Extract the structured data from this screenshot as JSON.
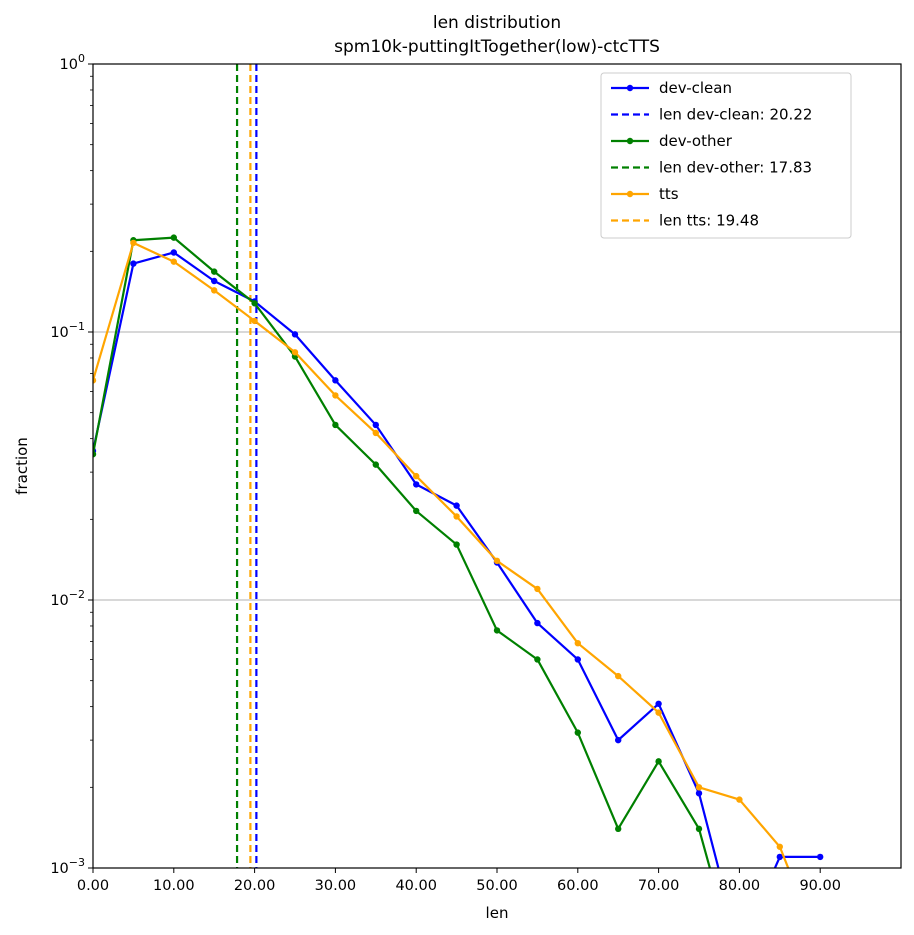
{
  "chart_data": {
    "type": "line",
    "title": "len distribution",
    "subtitle": "spm10k-puttingItTogether(low)-ctcTTS",
    "xlabel": "len",
    "ylabel": "fraction",
    "xlim": [
      0,
      100
    ],
    "ylim": [
      0.001,
      1
    ],
    "yscale": "log",
    "x_ticks": [
      "0.00",
      "10.00",
      "20.00",
      "30.00",
      "40.00",
      "50.00",
      "60.00",
      "70.00",
      "80.00",
      "90.00"
    ],
    "y_ticks": [
      {
        "base": "10",
        "exp": "0",
        "value": 1
      },
      {
        "base": "10",
        "exp": "−1",
        "value": 0.1
      },
      {
        "base": "10",
        "exp": "−2",
        "value": 0.01
      },
      {
        "base": "10",
        "exp": "−3",
        "value": 0.001
      }
    ],
    "grid": "horizontal",
    "legend_position": "top-right",
    "series": [
      {
        "name": "dev-clean",
        "color": "#0000ff",
        "x": [
          0,
          5,
          10,
          15,
          20,
          25,
          30,
          35,
          40,
          45,
          50,
          55,
          60,
          65,
          70,
          75,
          80,
          85,
          90
        ],
        "values": [
          0.036,
          0.18,
          0.198,
          0.155,
          0.13,
          0.098,
          0.066,
          0.045,
          0.027,
          0.0225,
          0.0138,
          0.0082,
          0.006,
          0.003,
          0.0041,
          0.0019,
          0.0005,
          0.0011,
          0.0011
        ]
      },
      {
        "name": "dev-other",
        "color": "#008000",
        "x": [
          0,
          5,
          10,
          15,
          20,
          25,
          30,
          35,
          40,
          45,
          50,
          55,
          60,
          65,
          70,
          75,
          80
        ],
        "values": [
          0.035,
          0.22,
          0.225,
          0.168,
          0.128,
          0.081,
          0.045,
          0.032,
          0.0215,
          0.0161,
          0.0077,
          0.006,
          0.0032,
          0.0014,
          0.0025,
          0.0014,
          0.0004
        ]
      },
      {
        "name": "tts",
        "color": "#ffa500",
        "x": [
          0,
          5,
          10,
          15,
          20,
          25,
          30,
          35,
          40,
          45,
          50,
          55,
          60,
          65,
          70,
          75,
          80,
          85,
          90
        ],
        "values": [
          0.066,
          0.215,
          0.183,
          0.143,
          0.11,
          0.084,
          0.058,
          0.042,
          0.029,
          0.0205,
          0.014,
          0.011,
          0.0069,
          0.0052,
          0.0038,
          0.002,
          0.0018,
          0.0012,
          0.0005
        ]
      }
    ],
    "vlines": [
      {
        "name": "len dev-clean: 20.22",
        "x": 20.22,
        "color": "#0000ff"
      },
      {
        "name": "len dev-other: 17.83",
        "x": 17.83,
        "color": "#008000"
      },
      {
        "name": "len tts: 19.48",
        "x": 19.48,
        "color": "#ffa500"
      }
    ],
    "legend": [
      {
        "label": "dev-clean",
        "style": "line-marker",
        "color": "#0000ff"
      },
      {
        "label": "len dev-clean: 20.22",
        "style": "dashed",
        "color": "#0000ff"
      },
      {
        "label": "dev-other",
        "style": "line-marker",
        "color": "#008000"
      },
      {
        "label": "len dev-other: 17.83",
        "style": "dashed",
        "color": "#008000"
      },
      {
        "label": "tts",
        "style": "line-marker",
        "color": "#ffa500"
      },
      {
        "label": "len tts: 19.48",
        "style": "dashed",
        "color": "#ffa500"
      }
    ]
  }
}
